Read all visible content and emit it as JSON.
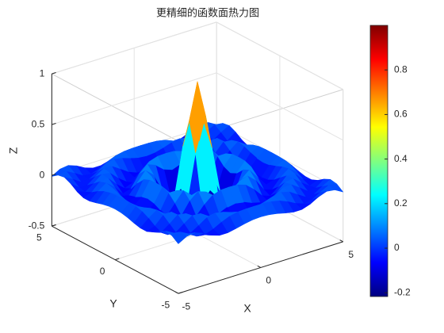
{
  "chart_data": {
    "type": "surface",
    "title": "更精细的函数面热力图",
    "xlabel": "X",
    "ylabel": "Y",
    "zlabel": "Z",
    "x": [
      -5,
      -4.5,
      -4,
      -3.5,
      -3,
      -2.5,
      -2,
      -1.5,
      -1,
      -0.5,
      0,
      0.5,
      1,
      1.5,
      2,
      2.5,
      3,
      3.5,
      4,
      4.5,
      5
    ],
    "y": [
      -5,
      -4.5,
      -4,
      -3.5,
      -3,
      -2.5,
      -2,
      -1.5,
      -1,
      -0.5,
      0,
      0.5,
      1,
      1.5,
      2,
      2.5,
      3,
      3.5,
      4,
      4.5,
      5
    ],
    "z": [
      [
        -0.01,
        0.036,
        0.047,
        0.017,
        -0.028,
        -0.055,
        -0.055,
        -0.039,
        -0.019,
        -0.005,
        0,
        -0.005,
        -0.019,
        -0.039,
        -0.055,
        -0.055,
        -0.028,
        0.017,
        0.047,
        0.036,
        -0.01
      ],
      [
        0.036,
        0.046,
        0.003,
        -0.045,
        -0.057,
        -0.028,
        0.015,
        0.048,
        0.065,
        0.07,
        0.071,
        0.07,
        0.065,
        0.048,
        0.015,
        -0.028,
        -0.057,
        -0.045,
        0.003,
        0.046,
        0.036
      ],
      [
        0.047,
        0.003,
        -0.05,
        -0.05,
        0,
        0.052,
        0.071,
        0.056,
        0.029,
        0.008,
        0,
        0.008,
        0.029,
        0.056,
        0.071,
        0.052,
        0,
        -0.05,
        -0.05,
        0.003,
        0.047
      ],
      [
        0.017,
        -0.045,
        -0.05,
        0.01,
        0.065,
        0.06,
        0.008,
        -0.047,
        -0.079,
        -0.089,
        -0.091,
        -0.089,
        -0.079,
        -0.047,
        0.008,
        0.06,
        0.065,
        0.01,
        -0.05,
        -0.045,
        0.017
      ],
      [
        -0.028,
        -0.057,
        0,
        0.065,
        0.052,
        -0.024,
        -0.084,
        -0.069,
        -0.049,
        -0.014,
        0,
        -0.014,
        -0.049,
        -0.069,
        -0.084,
        -0.024,
        0.052,
        0.065,
        0,
        -0.057,
        -0.028
      ],
      [
        -0.055,
        -0.028,
        0.052,
        0.06,
        -0.024,
        -0.089,
        -0.059,
        0.029,
        0.097,
        0.123,
        0.127,
        0.123,
        0.097,
        0.029,
        -0.059,
        -0.089,
        -0.024,
        0.06,
        0.052,
        -0.028,
        -0.055
      ],
      [
        -0.055,
        0.015,
        0.071,
        0.008,
        -0.084,
        -0.059,
        0.058,
        0.127,
        0.096,
        0.03,
        0,
        0.03,
        0.096,
        0.127,
        0.058,
        -0.059,
        -0.084,
        0.008,
        0.071,
        0.015,
        -0.055
      ],
      [
        -0.039,
        0.048,
        0.056,
        -0.047,
        -0.069,
        0.029,
        0.127,
        0.056,
        -0.103,
        -0.195,
        -0.212,
        -0.195,
        -0.103,
        0.056,
        0.127,
        0.029,
        -0.069,
        -0.047,
        0.056,
        0.048,
        -0.039
      ],
      [
        -0.019,
        0.065,
        0.029,
        -0.079,
        -0.049,
        0.097,
        0.096,
        -0.103,
        -0.217,
        -0.103,
        0,
        -0.103,
        -0.217,
        -0.103,
        0.096,
        0.097,
        -0.049,
        -0.079,
        0.029,
        0.065,
        -0.019
      ],
      [
        -0.005,
        0.07,
        0.008,
        -0.089,
        -0.014,
        0.123,
        0.03,
        -0.195,
        -0.103,
        0.358,
        0.637,
        0.358,
        -0.103,
        -0.195,
        0.03,
        0.123,
        -0.014,
        -0.089,
        0.008,
        0.07,
        -0.005
      ],
      [
        0,
        0.071,
        0,
        -0.091,
        0,
        0.127,
        0,
        -0.212,
        0,
        0.637,
        1,
        0.637,
        0,
        -0.212,
        0,
        0.127,
        0,
        -0.091,
        0,
        0.071,
        0
      ],
      [
        -0.005,
        0.07,
        0.008,
        -0.089,
        -0.014,
        0.123,
        0.03,
        -0.195,
        -0.103,
        0.358,
        0.637,
        0.358,
        -0.103,
        -0.195,
        0.03,
        0.123,
        -0.014,
        -0.089,
        0.008,
        0.07,
        -0.005
      ],
      [
        -0.019,
        0.065,
        0.029,
        -0.079,
        -0.049,
        0.097,
        0.096,
        -0.103,
        -0.217,
        -0.103,
        0,
        -0.103,
        -0.217,
        -0.103,
        0.096,
        0.097,
        -0.049,
        -0.079,
        0.029,
        0.065,
        -0.019
      ],
      [
        -0.039,
        0.048,
        0.056,
        -0.047,
        -0.069,
        0.029,
        0.127,
        0.056,
        -0.103,
        -0.195,
        -0.212,
        -0.195,
        -0.103,
        0.056,
        0.127,
        0.029,
        -0.069,
        -0.047,
        0.056,
        0.048,
        -0.039
      ],
      [
        -0.055,
        0.015,
        0.071,
        0.008,
        -0.084,
        -0.059,
        0.058,
        0.127,
        0.096,
        0.03,
        0,
        0.03,
        0.096,
        0.127,
        0.058,
        -0.059,
        -0.084,
        0.008,
        0.071,
        0.015,
        -0.055
      ],
      [
        -0.055,
        -0.028,
        0.052,
        0.06,
        -0.024,
        -0.089,
        -0.059,
        0.029,
        0.097,
        0.123,
        0.127,
        0.123,
        0.097,
        0.029,
        -0.059,
        -0.089,
        -0.024,
        0.06,
        0.052,
        -0.028,
        -0.055
      ],
      [
        -0.028,
        -0.057,
        0,
        0.065,
        0.052,
        -0.024,
        -0.084,
        -0.069,
        -0.049,
        -0.014,
        0,
        -0.014,
        -0.049,
        -0.069,
        -0.084,
        -0.024,
        0.052,
        0.065,
        0,
        -0.057,
        -0.028
      ],
      [
        0.017,
        -0.045,
        -0.05,
        0.01,
        0.065,
        0.06,
        0.008,
        -0.047,
        -0.079,
        -0.089,
        -0.091,
        -0.089,
        -0.079,
        -0.047,
        0.008,
        0.06,
        0.065,
        0.01,
        -0.05,
        -0.045,
        0.017
      ],
      [
        0.047,
        0.003,
        -0.05,
        -0.05,
        0,
        0.052,
        0.071,
        0.056,
        0.029,
        0.008,
        0,
        0.008,
        0.029,
        0.056,
        0.071,
        0.052,
        0,
        -0.05,
        -0.05,
        0.003,
        0.047
      ],
      [
        0.036,
        0.046,
        0.003,
        -0.045,
        -0.057,
        -0.028,
        0.015,
        0.048,
        0.065,
        0.07,
        0.071,
        0.07,
        0.065,
        0.048,
        0.015,
        -0.028,
        -0.057,
        -0.045,
        0.003,
        0.046,
        0.036
      ],
      [
        -0.01,
        0.036,
        0.047,
        0.017,
        -0.028,
        -0.055,
        -0.055,
        -0.039,
        -0.019,
        -0.005,
        0,
        -0.005,
        -0.019,
        -0.039,
        -0.055,
        -0.055,
        -0.028,
        0.017,
        0.047,
        0.036,
        -0.01
      ]
    ],
    "xlim": [
      -5,
      5
    ],
    "ylim": [
      -5,
      5
    ],
    "zlim": [
      -0.5,
      1
    ],
    "xticks": [
      -5,
      0,
      5
    ],
    "yticks": [
      -5,
      0,
      5
    ],
    "zticks": [
      -0.5,
      0,
      0.5,
      1
    ],
    "colormap": "jet",
    "clim": [
      -0.217,
      1
    ],
    "colorbar_ticks": [
      -0.2,
      0,
      0.2,
      0.4,
      0.6,
      0.8
    ],
    "grid": true
  }
}
